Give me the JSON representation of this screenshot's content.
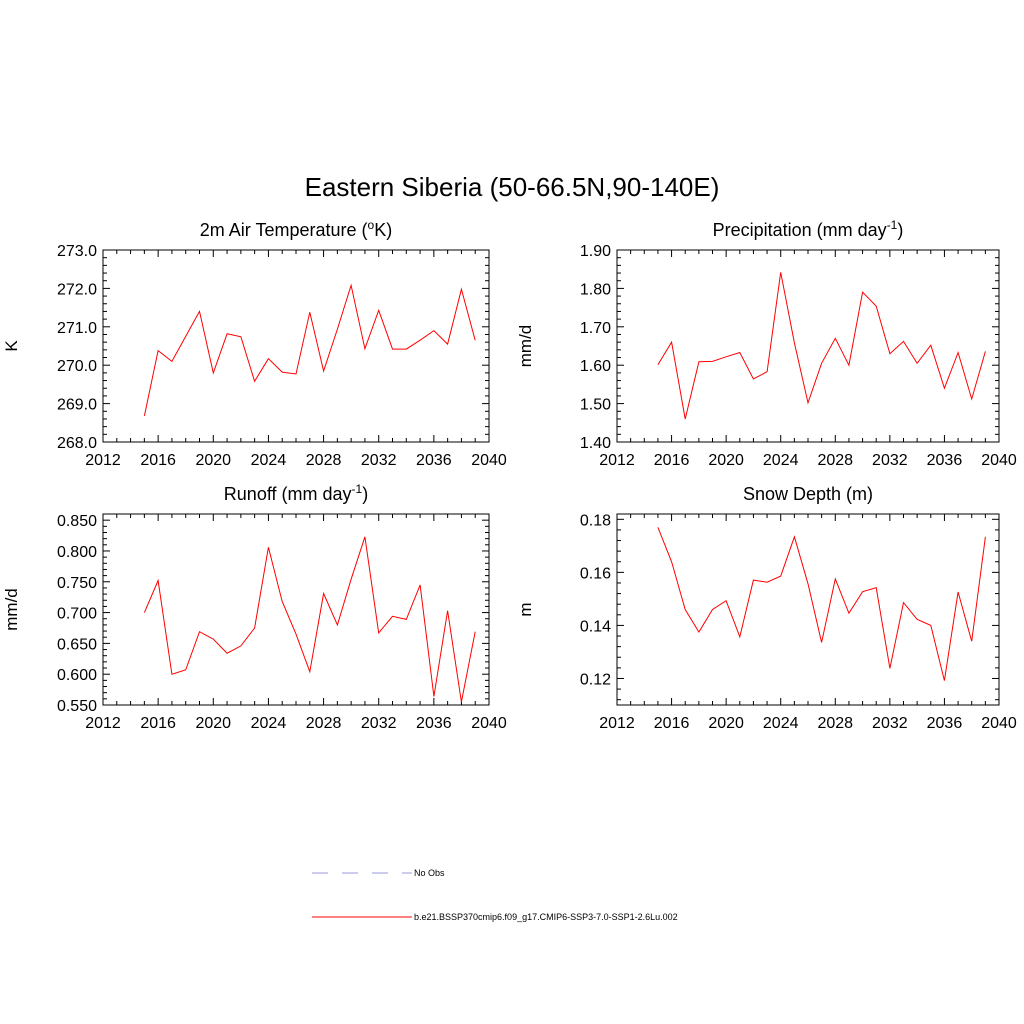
{
  "figure": {
    "title": "Eastern Siberia (50-66.5N,90-140E)"
  },
  "legend": {
    "entries": [
      {
        "label": "No Obs",
        "color": "#9999dd",
        "dash": "dashed"
      },
      {
        "label": "b.e21.BSSP370cmip6.f09_g17.CMIP6-SSP3-7.0-SSP1-2.6Lu.002",
        "color": "#ff0000",
        "dash": "solid"
      }
    ]
  },
  "chart_data": [
    {
      "type": "line",
      "title": "2m Air Temperature (",
      "title_parts": [
        "2m Air Temperature (",
        "o",
        "K)"
      ],
      "ylabel": "K",
      "xlim": [
        2012,
        2040
      ],
      "xticks": [
        "2012",
        "2016",
        "2020",
        "2024",
        "2028",
        "2032",
        "2036",
        "2040"
      ],
      "ylim": [
        268.0,
        273.0
      ],
      "yticks": [
        "268.0",
        "269.0",
        "270.0",
        "271.0",
        "272.0",
        "273.0"
      ],
      "grid": false,
      "series": [
        {
          "color": "#ff0000",
          "x": [
            2015,
            2016,
            2017,
            2018,
            2019,
            2020,
            2021,
            2022,
            2023,
            2024,
            2025,
            2026,
            2027,
            2028,
            2029,
            2030,
            2031,
            2032,
            2033,
            2034,
            2035,
            2036,
            2037,
            2038,
            2039
          ],
          "values": [
            268.68,
            270.38,
            270.1,
            270.75,
            271.4,
            269.8,
            270.82,
            270.74,
            269.58,
            270.17,
            269.82,
            269.77,
            271.38,
            269.85,
            270.94,
            272.08,
            270.43,
            271.43,
            270.42,
            270.42,
            270.65,
            270.9,
            270.55,
            271.98,
            270.65
          ]
        }
      ]
    },
    {
      "type": "line",
      "title": "Precipitation (mm day",
      "title_parts": [
        "Precipitation (mm day",
        "-1",
        ")"
      ],
      "ylabel": "mm/d",
      "xlim": [
        2012,
        2040
      ],
      "xticks": [
        "2012",
        "2016",
        "2020",
        "2024",
        "2028",
        "2032",
        "2036",
        "2040"
      ],
      "ylim": [
        1.4,
        1.9
      ],
      "yticks": [
        "1.40",
        "1.50",
        "1.60",
        "1.70",
        "1.80",
        "1.90"
      ],
      "grid": false,
      "series": [
        {
          "color": "#ff0000",
          "x": [
            2015,
            2016,
            2017,
            2018,
            2019,
            2020,
            2021,
            2022,
            2023,
            2024,
            2025,
            2026,
            2027,
            2028,
            2029,
            2030,
            2031,
            2032,
            2033,
            2034,
            2035,
            2036,
            2037,
            2038,
            2039
          ],
          "values": [
            1.601,
            1.66,
            1.46,
            1.609,
            1.61,
            1.622,
            1.633,
            1.564,
            1.583,
            1.842,
            1.658,
            1.502,
            1.605,
            1.67,
            1.6,
            1.79,
            1.754,
            1.63,
            1.662,
            1.605,
            1.652,
            1.54,
            1.633,
            1.512,
            1.636
          ]
        }
      ]
    },
    {
      "type": "line",
      "title": "Runoff (mm day",
      "title_parts": [
        "Runoff (mm day",
        "-1",
        ")"
      ],
      "ylabel": "mm/d",
      "xlim": [
        2012,
        2040
      ],
      "xticks": [
        "2012",
        "2016",
        "2020",
        "2024",
        "2028",
        "2032",
        "2036",
        "2040"
      ],
      "ylim": [
        0.55,
        0.86
      ],
      "yticks": [
        "0.550",
        "0.600",
        "0.650",
        "0.700",
        "0.750",
        "0.800",
        "0.850"
      ],
      "grid": false,
      "series": [
        {
          "color": "#ff0000",
          "x": [
            2015,
            2016,
            2017,
            2018,
            2019,
            2020,
            2021,
            2022,
            2023,
            2024,
            2025,
            2026,
            2027,
            2028,
            2029,
            2030,
            2031,
            2032,
            2033,
            2034,
            2035,
            2036,
            2037,
            2038,
            2039
          ],
          "values": [
            0.7,
            0.752,
            0.6,
            0.607,
            0.669,
            0.657,
            0.634,
            0.646,
            0.675,
            0.806,
            0.718,
            0.665,
            0.604,
            0.731,
            0.68,
            0.754,
            0.823,
            0.667,
            0.694,
            0.689,
            0.745,
            0.564,
            0.703,
            0.555,
            0.669
          ]
        }
      ]
    },
    {
      "type": "line",
      "title": "Snow Depth (m)",
      "title_parts": [
        "Snow Depth (m)",
        "",
        ""
      ],
      "ylabel": "m",
      "xlim": [
        2012,
        2040
      ],
      "xticks": [
        "2012",
        "2016",
        "2020",
        "2024",
        "2028",
        "2032",
        "2036",
        "2040"
      ],
      "ylim": [
        0.11,
        0.182
      ],
      "yticks": [
        "0.12",
        "0.14",
        "0.16",
        "0.18"
      ],
      "grid": false,
      "series": [
        {
          "color": "#ff0000",
          "x": [
            2015,
            2016,
            2017,
            2018,
            2019,
            2020,
            2021,
            2022,
            2023,
            2024,
            2025,
            2026,
            2027,
            2028,
            2029,
            2030,
            2031,
            2032,
            2033,
            2034,
            2035,
            2036,
            2037,
            2038,
            2039
          ],
          "values": [
            0.177,
            0.164,
            0.146,
            0.1375,
            0.146,
            0.1493,
            0.1357,
            0.1571,
            0.1563,
            0.1586,
            0.1734,
            0.1557,
            0.1336,
            0.1575,
            0.1446,
            0.1527,
            0.1542,
            0.1238,
            0.1486,
            0.1423,
            0.14,
            0.1192,
            0.1526,
            0.134,
            0.1734
          ]
        }
      ]
    }
  ]
}
